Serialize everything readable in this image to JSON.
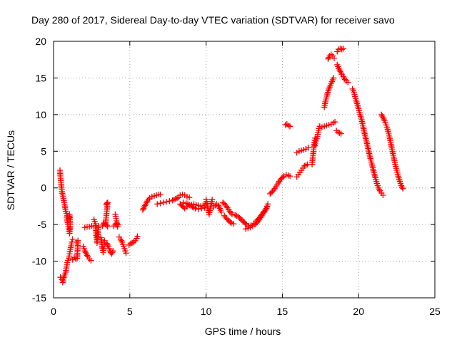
{
  "chart_data": {
    "type": "scatter",
    "title": "Day 280 of 2017, Sidereal Day-to-day VTEC variation (SDTVAR) for receiver savo",
    "xlabel": "GPS time / hours",
    "ylabel": "SDTVAR / TECUs",
    "xlim": [
      0,
      25
    ],
    "ylim": [
      -15,
      20
    ],
    "xticks": [
      0,
      5,
      10,
      15,
      20,
      25
    ],
    "yticks": [
      -15,
      -10,
      -5,
      0,
      5,
      10,
      15,
      20
    ],
    "grid": true,
    "marker": "+",
    "color": "#ff0000",
    "segments": [
      [
        [
          0.42,
          2.4
        ],
        [
          0.45,
          1.5
        ],
        [
          0.5,
          0.5
        ],
        [
          0.55,
          -0.5
        ],
        [
          0.62,
          -1.2
        ],
        [
          0.7,
          -2.0
        ],
        [
          0.8,
          -3.2
        ],
        [
          0.9,
          -3.8
        ]
      ],
      [
        [
          0.45,
          -12.2
        ],
        [
          0.55,
          -12.5
        ],
        [
          0.6,
          -12.9
        ],
        [
          0.7,
          -12.0
        ],
        [
          0.8,
          -11.5
        ],
        [
          0.85,
          -10.8
        ],
        [
          0.9,
          -10.2
        ],
        [
          1.0,
          -9.6
        ],
        [
          1.05,
          -9.0
        ],
        [
          1.1,
          -8.4
        ],
        [
          1.15,
          -7.9
        ],
        [
          1.2,
          -7.4
        ],
        [
          1.25,
          -7.0
        ]
      ],
      [
        [
          0.85,
          -4.0
        ],
        [
          0.9,
          -4.5
        ],
        [
          0.95,
          -5.0
        ],
        [
          1.0,
          -5.6
        ],
        [
          1.05,
          -6.2
        ],
        [
          1.1,
          -5.0
        ],
        [
          1.05,
          -3.6
        ],
        [
          1.0,
          -4.2
        ]
      ],
      [
        [
          1.25,
          -9.8
        ],
        [
          1.35,
          -9.5
        ],
        [
          1.45,
          -9.7
        ],
        [
          1.55,
          -9.6
        ],
        [
          1.6,
          -7.2
        ],
        [
          1.5,
          -7.4
        ]
      ],
      [
        [
          1.95,
          -8.0
        ],
        [
          2.05,
          -8.6
        ],
        [
          2.15,
          -9.0
        ],
        [
          2.25,
          -9.4
        ],
        [
          2.35,
          -9.7
        ],
        [
          2.45,
          -9.9
        ]
      ],
      [
        [
          2.05,
          -5.4
        ],
        [
          2.2,
          -5.3
        ],
        [
          2.35,
          -5.3
        ],
        [
          2.5,
          -5.2
        ]
      ],
      [
        [
          2.65,
          -4.3
        ],
        [
          2.7,
          -4.6
        ],
        [
          2.75,
          -4.9
        ],
        [
          2.8,
          -6.5
        ],
        [
          2.85,
          -7.5
        ],
        [
          2.9,
          -6.6
        ],
        [
          2.95,
          -5.2
        ]
      ],
      [
        [
          3.1,
          -6.8
        ],
        [
          3.15,
          -7.5
        ],
        [
          3.2,
          -8.2
        ],
        [
          3.25,
          -8.8
        ],
        [
          3.3,
          -8.0
        ],
        [
          3.35,
          -7.2
        ]
      ],
      [
        [
          3.2,
          -5.2
        ],
        [
          3.3,
          -4.8
        ],
        [
          3.4,
          -4.9
        ],
        [
          3.5,
          -5.1
        ],
        [
          3.55,
          -5.3
        ]
      ],
      [
        [
          3.45,
          -2.3
        ],
        [
          3.5,
          -2.1
        ],
        [
          3.55,
          -2.0
        ],
        [
          3.5,
          -3.0
        ],
        [
          3.45,
          -4.0
        ],
        [
          3.4,
          -5.0
        ]
      ],
      [
        [
          3.5,
          -7.6
        ],
        [
          3.6,
          -8.0
        ],
        [
          3.7,
          -8.6
        ],
        [
          3.8,
          -9.0
        ],
        [
          3.9,
          -8.6
        ]
      ],
      [
        [
          3.95,
          -5.2
        ],
        [
          4.05,
          -5.0
        ],
        [
          4.15,
          -4.9
        ],
        [
          4.25,
          -5.0
        ]
      ],
      [
        [
          4.05,
          -3.6
        ],
        [
          4.1,
          -4.2
        ],
        [
          4.15,
          -4.8
        ],
        [
          4.2,
          -5.3
        ]
      ],
      [
        [
          4.3,
          -6.7
        ],
        [
          4.4,
          -7.0
        ],
        [
          4.5,
          -7.4
        ],
        [
          4.6,
          -8.0
        ],
        [
          4.7,
          -8.6
        ],
        [
          4.75,
          -8.9
        ]
      ],
      [
        [
          4.95,
          -7.8
        ],
        [
          5.05,
          -7.6
        ],
        [
          5.15,
          -7.5
        ],
        [
          5.25,
          -7.4
        ],
        [
          5.35,
          -7.2
        ],
        [
          5.45,
          -6.9
        ],
        [
          5.5,
          -6.6
        ]
      ],
      [
        [
          5.85,
          -3.0
        ],
        [
          5.95,
          -2.6
        ],
        [
          6.05,
          -2.2
        ],
        [
          6.15,
          -1.8
        ],
        [
          6.3,
          -1.4
        ],
        [
          6.45,
          -1.2
        ],
        [
          6.6,
          -1.1
        ],
        [
          6.75,
          -1.0
        ],
        [
          6.9,
          -0.9
        ],
        [
          7.0,
          -0.9
        ]
      ],
      [
        [
          6.8,
          -2.2
        ],
        [
          7.0,
          -2.1
        ],
        [
          7.2,
          -2.0
        ],
        [
          7.4,
          -1.9
        ],
        [
          7.6,
          -1.8
        ],
        [
          7.8,
          -1.7
        ],
        [
          8.0,
          -1.5
        ],
        [
          8.2,
          -1.3
        ]
      ],
      [
        [
          8.3,
          -1.0
        ],
        [
          8.45,
          -0.9
        ],
        [
          8.6,
          -1.0
        ],
        [
          8.75,
          -1.2
        ],
        [
          8.9,
          -1.3
        ]
      ],
      [
        [
          8.3,
          -2.2
        ],
        [
          8.45,
          -2.5
        ],
        [
          8.6,
          -2.8
        ],
        [
          8.75,
          -2.6
        ],
        [
          8.9,
          -2.4
        ],
        [
          9.05,
          -2.3
        ],
        [
          9.2,
          -2.2
        ],
        [
          9.35,
          -2.3
        ],
        [
          9.5,
          -2.4
        ],
        [
          9.65,
          -2.5
        ],
        [
          9.8,
          -2.4
        ],
        [
          9.95,
          -2.2
        ]
      ],
      [
        [
          8.5,
          -2.0
        ],
        [
          8.7,
          -2.1
        ],
        [
          8.9,
          -2.3
        ],
        [
          9.1,
          -2.6
        ],
        [
          9.3,
          -2.8
        ],
        [
          9.5,
          -2.9
        ],
        [
          9.7,
          -2.8
        ],
        [
          9.9,
          -2.7
        ],
        [
          10.1,
          -2.6
        ]
      ],
      [
        [
          10.0,
          -1.6
        ],
        [
          10.1,
          -2.6
        ],
        [
          10.2,
          -3.6
        ],
        [
          10.3,
          -2.6
        ],
        [
          10.4,
          -1.6
        ]
      ],
      [
        [
          10.5,
          -2.6
        ],
        [
          10.6,
          -2.4
        ],
        [
          10.7,
          -2.2
        ],
        [
          10.8,
          -2.4
        ],
        [
          10.9,
          -2.8
        ],
        [
          11.0,
          -3.3
        ]
      ],
      [
        [
          11.1,
          -2.0
        ],
        [
          11.25,
          -2.3
        ],
        [
          11.4,
          -2.7
        ],
        [
          11.55,
          -3.2
        ],
        [
          11.7,
          -3.6
        ]
      ],
      [
        [
          11.2,
          -3.8
        ],
        [
          11.35,
          -4.2
        ],
        [
          11.5,
          -4.5
        ],
        [
          11.65,
          -4.8
        ],
        [
          11.8,
          -4.9
        ]
      ],
      [
        [
          11.9,
          -3.7
        ],
        [
          12.0,
          -3.8
        ],
        [
          12.1,
          -3.9
        ],
        [
          12.2,
          -4.1
        ],
        [
          12.35,
          -4.4
        ],
        [
          12.5,
          -4.7
        ],
        [
          12.65,
          -5.0
        ],
        [
          12.8,
          -5.2
        ],
        [
          12.95,
          -5.1
        ],
        [
          13.1,
          -4.9
        ]
      ],
      [
        [
          12.6,
          -5.6
        ],
        [
          12.75,
          -5.5
        ],
        [
          12.9,
          -5.4
        ],
        [
          13.05,
          -5.2
        ],
        [
          13.2,
          -5.0
        ],
        [
          13.35,
          -4.7
        ],
        [
          13.5,
          -4.3
        ],
        [
          13.65,
          -3.8
        ],
        [
          13.8,
          -3.3
        ],
        [
          13.95,
          -2.8
        ],
        [
          14.05,
          -2.2
        ]
      ],
      [
        [
          13.3,
          -4.5
        ],
        [
          13.45,
          -4.2
        ],
        [
          13.6,
          -3.8
        ],
        [
          13.75,
          -3.4
        ],
        [
          13.9,
          -3.0
        ],
        [
          14.0,
          -2.6
        ]
      ],
      [
        [
          14.2,
          -0.8
        ],
        [
          14.35,
          -0.5
        ],
        [
          14.5,
          -0.1
        ],
        [
          14.65,
          0.4
        ],
        [
          14.8,
          0.9
        ],
        [
          14.95,
          1.3
        ],
        [
          15.1,
          1.6
        ],
        [
          15.25,
          1.8
        ],
        [
          15.4,
          1.7
        ],
        [
          15.5,
          1.6
        ]
      ],
      [
        [
          15.2,
          8.6
        ],
        [
          15.3,
          8.7
        ],
        [
          15.4,
          8.5
        ],
        [
          15.5,
          8.4
        ]
      ],
      [
        [
          15.95,
          1.5
        ],
        [
          16.05,
          1.8
        ],
        [
          16.15,
          2.1
        ],
        [
          16.25,
          2.4
        ],
        [
          16.35,
          2.7
        ],
        [
          16.45,
          3.0
        ],
        [
          16.55,
          3.1
        ],
        [
          16.65,
          3.2
        ]
      ],
      [
        [
          15.95,
          4.8
        ],
        [
          16.1,
          5.0
        ],
        [
          16.25,
          5.1
        ],
        [
          16.4,
          5.2
        ],
        [
          16.55,
          5.3
        ],
        [
          16.7,
          5.5
        ]
      ],
      [
        [
          16.95,
          3.2
        ],
        [
          17.0,
          4.2
        ],
        [
          17.05,
          5.2
        ],
        [
          17.1,
          6.2
        ],
        [
          17.15,
          6.8
        ]
      ],
      [
        [
          17.15,
          5.8
        ],
        [
          17.2,
          6.4
        ],
        [
          17.3,
          7.0
        ],
        [
          17.35,
          7.6
        ],
        [
          17.4,
          8.1
        ],
        [
          17.45,
          8.4
        ]
      ],
      [
        [
          17.6,
          8.3
        ],
        [
          17.75,
          8.4
        ],
        [
          17.9,
          8.5
        ],
        [
          18.05,
          8.6
        ],
        [
          18.2,
          8.7
        ],
        [
          18.35,
          8.9
        ],
        [
          18.45,
          9.0
        ]
      ],
      [
        [
          17.75,
          11.0
        ],
        [
          17.85,
          12.0
        ],
        [
          17.95,
          12.8
        ],
        [
          18.05,
          13.5
        ],
        [
          18.15,
          14.0
        ],
        [
          18.25,
          14.5
        ],
        [
          18.35,
          15.0
        ]
      ],
      [
        [
          18.0,
          17.6
        ],
        [
          18.1,
          18.0
        ],
        [
          18.2,
          18.2
        ],
        [
          18.3,
          18.0
        ],
        [
          18.4,
          17.7
        ]
      ],
      [
        [
          18.6,
          18.6
        ],
        [
          18.7,
          18.9
        ],
        [
          18.8,
          19.0
        ],
        [
          18.9,
          18.9
        ],
        [
          19.0,
          19.0
        ]
      ],
      [
        [
          18.55,
          7.8
        ],
        [
          18.65,
          7.6
        ],
        [
          18.75,
          7.5
        ],
        [
          18.85,
          7.4
        ]
      ],
      [
        [
          18.6,
          16.8
        ],
        [
          18.7,
          16.3
        ],
        [
          18.8,
          15.9
        ],
        [
          18.9,
          15.5
        ],
        [
          19.0,
          15.2
        ],
        [
          19.1,
          14.8
        ],
        [
          19.2,
          14.6
        ],
        [
          19.3,
          14.4
        ]
      ],
      [
        [
          19.6,
          13.5
        ],
        [
          19.7,
          13.0
        ],
        [
          19.8,
          12.2
        ],
        [
          19.9,
          11.5
        ],
        [
          20.0,
          10.8
        ],
        [
          20.1,
          10.0
        ],
        [
          20.2,
          9.3
        ],
        [
          20.3,
          8.3
        ],
        [
          20.4,
          7.4
        ],
        [
          20.5,
          6.5
        ],
        [
          20.6,
          5.6
        ],
        [
          20.7,
          4.7
        ],
        [
          20.8,
          3.8
        ],
        [
          20.9,
          3.0
        ],
        [
          21.0,
          2.1
        ],
        [
          21.1,
          1.4
        ],
        [
          21.2,
          0.6
        ],
        [
          21.3,
          0.0
        ],
        [
          21.4,
          -0.4
        ],
        [
          21.5,
          -0.7
        ],
        [
          21.6,
          -1.0
        ]
      ],
      [
        [
          21.5,
          10.0
        ],
        [
          21.6,
          9.6
        ],
        [
          21.7,
          9.2
        ],
        [
          21.8,
          8.6
        ],
        [
          21.9,
          8.0
        ],
        [
          22.0,
          7.2
        ],
        [
          22.1,
          6.2
        ],
        [
          22.2,
          5.2
        ],
        [
          22.3,
          4.2
        ],
        [
          22.4,
          3.2
        ],
        [
          22.5,
          2.4
        ],
        [
          22.6,
          1.6
        ],
        [
          22.7,
          0.9
        ],
        [
          22.8,
          0.3
        ],
        [
          22.9,
          -0.1
        ]
      ]
    ]
  }
}
